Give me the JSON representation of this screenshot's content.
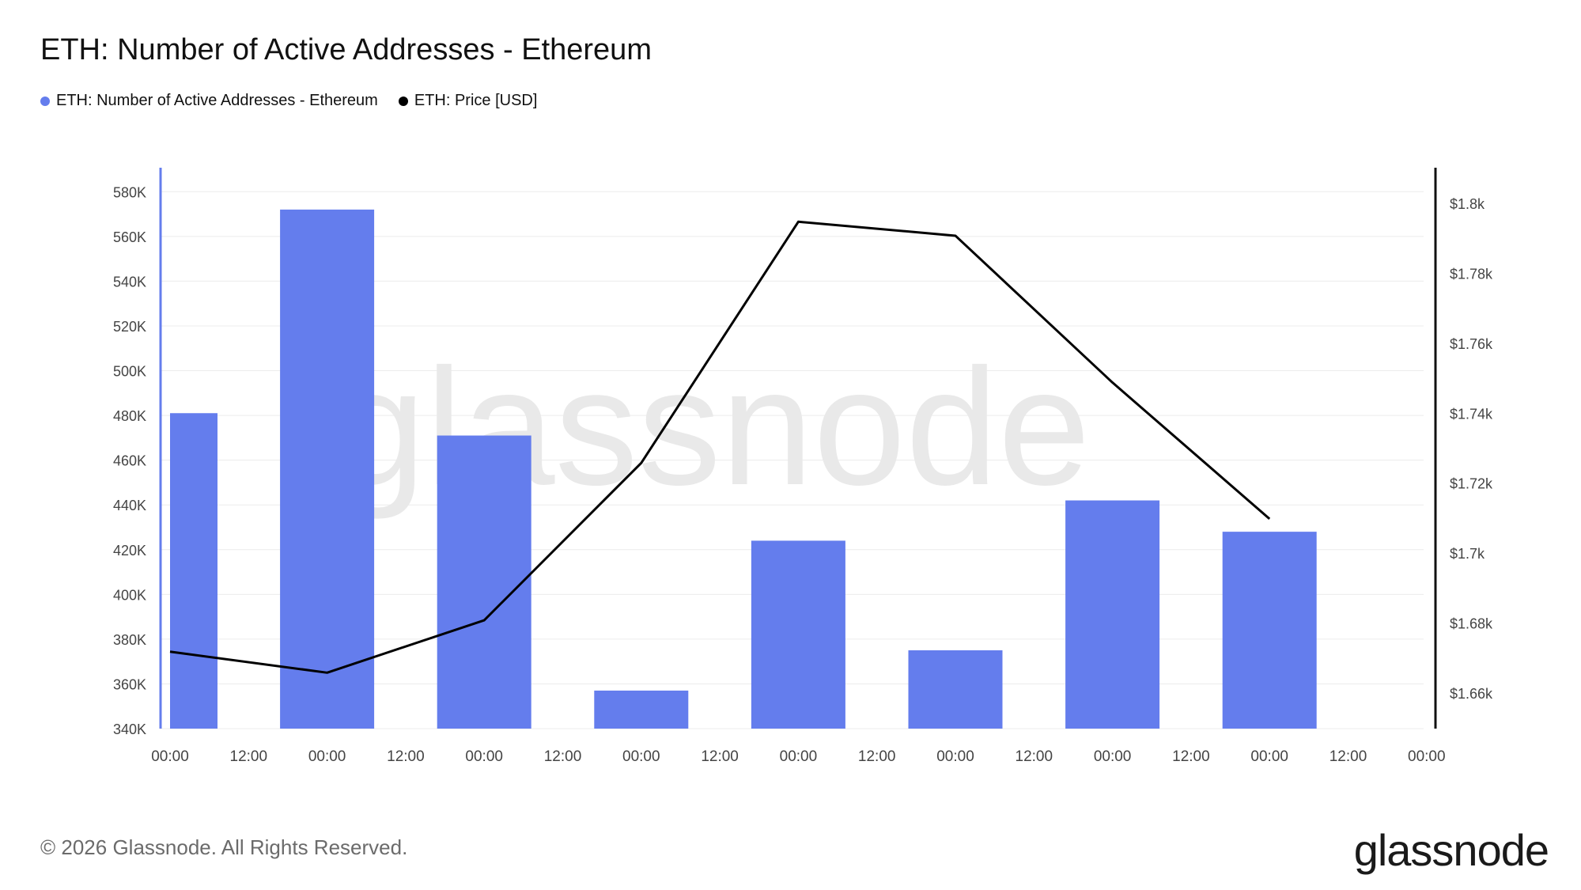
{
  "title": "ETH: Number of Active Addresses - Ethereum",
  "legend": [
    {
      "label": "ETH: Number of Active Addresses - Ethereum",
      "color": "#647ded"
    },
    {
      "label": "ETH: Price [USD]",
      "color": "#000000"
    }
  ],
  "watermark": "glassnode",
  "footer": {
    "copyright": "© 2026 Glassnode. All Rights Reserved.",
    "logo": "glassnode"
  },
  "chart_data": {
    "type": "bar",
    "title": "ETH: Number of Active Addresses - Ethereum",
    "x_tick_labels": [
      "00:00",
      "12:00",
      "00:00",
      "12:00",
      "00:00",
      "12:00",
      "00:00",
      "12:00",
      "00:00",
      "12:00",
      "00:00",
      "12:00",
      "00:00",
      "12:00",
      "00:00",
      "12:00",
      "00:00"
    ],
    "left_axis": {
      "ylim": [
        340000,
        590000
      ],
      "ticks": [
        340000,
        360000,
        380000,
        400000,
        420000,
        440000,
        460000,
        480000,
        500000,
        520000,
        540000,
        560000,
        580000
      ],
      "tick_labels": [
        "340K",
        "360K",
        "380K",
        "400K",
        "420K",
        "440K",
        "460K",
        "480K",
        "500K",
        "520K",
        "540K",
        "560K",
        "580K"
      ]
    },
    "right_axis": {
      "ylim": [
        1650,
        1810
      ],
      "ticks": [
        1660,
        1680,
        1700,
        1720,
        1740,
        1760,
        1780,
        1800
      ],
      "tick_labels": [
        "$1.66k",
        "$1.68k",
        "$1.7k",
        "$1.72k",
        "$1.74k",
        "$1.76k",
        "$1.78k",
        "$1.8k"
      ]
    },
    "grid": true,
    "series": [
      {
        "name": "ETH: Number of Active Addresses - Ethereum",
        "type": "bar",
        "axis": "left",
        "color": "#647ded",
        "x_index": [
          0,
          2,
          4,
          6,
          8,
          10,
          12,
          14
        ],
        "values": [
          481000,
          572000,
          471000,
          357000,
          424000,
          375000,
          442000,
          428000
        ]
      },
      {
        "name": "ETH: Price [USD]",
        "type": "line",
        "axis": "right",
        "color": "#000000",
        "x_index": [
          0,
          2,
          4,
          6,
          8,
          10,
          12,
          14
        ],
        "values": [
          1672,
          1666,
          1681,
          1726,
          1795,
          1791,
          1749,
          1710
        ]
      }
    ]
  }
}
